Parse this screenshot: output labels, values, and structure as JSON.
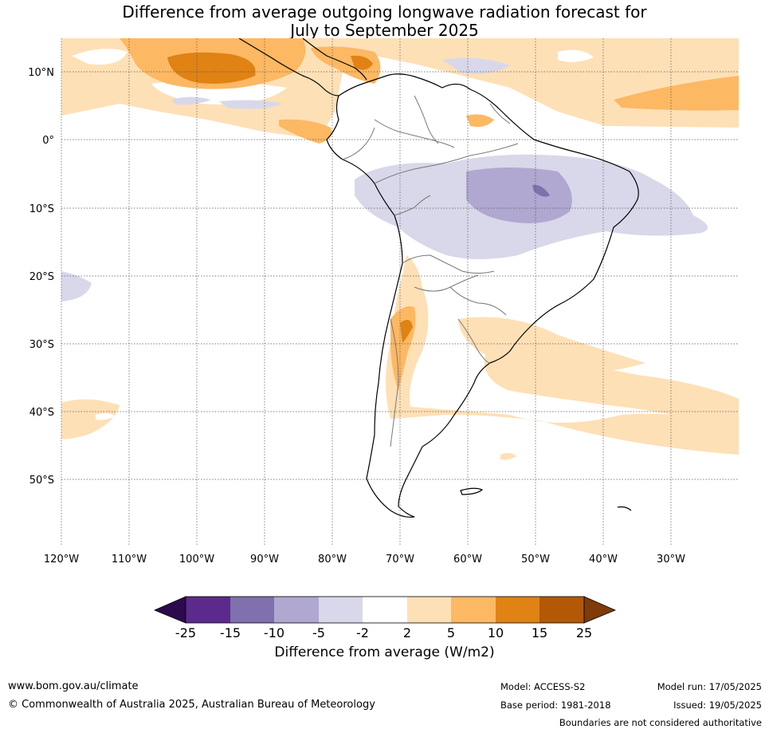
{
  "title_line1": "Difference from average outgoing longwave radiation forecast for",
  "title_line2": "July to September 2025",
  "map": {
    "lat_ticks": [
      "10°N",
      "0°",
      "10°S",
      "20°S",
      "30°S",
      "40°S",
      "50°S"
    ],
    "lon_ticks": [
      "120°W",
      "110°W",
      "100°W",
      "90°W",
      "80°W",
      "70°W",
      "60°W",
      "50°W",
      "40°W",
      "30°W"
    ],
    "extent": {
      "lon_min": -120,
      "lon_max": -20,
      "lat_min": -60,
      "lat_max": 15
    }
  },
  "colorbar": {
    "title": "Difference from average (W/m2)",
    "labels": [
      "-25",
      "-15",
      "-10",
      "-5",
      "-2",
      "2",
      "5",
      "10",
      "15",
      "25"
    ],
    "colors": [
      "#2d0a4e",
      "#5c2a8c",
      "#8070ad",
      "#b0a8d0",
      "#d8d8ea",
      "#ffffff",
      "#fee0b6",
      "#fdb863",
      "#e08214",
      "#b35806",
      "#7f3b08"
    ]
  },
  "footer": {
    "website": "www.bom.gov.au/climate",
    "copyright": "© Commonwealth of Australia 2025, Australian Bureau of Meteorology",
    "model": "Model: ACCESS-S2",
    "base_period": "Base period: 1981-2018",
    "model_run": "Model run: 17/05/2025",
    "issued": "Issued: 19/05/2025",
    "disclaimer": "Boundaries are not considered authoritative"
  }
}
